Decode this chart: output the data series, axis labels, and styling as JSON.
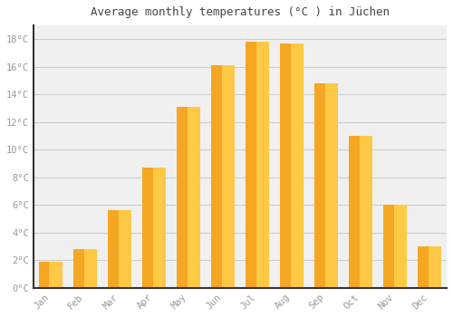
{
  "title": "Average monthly temperatures (°C ) in Jüchen",
  "months": [
    "Jan",
    "Feb",
    "Mar",
    "Apr",
    "May",
    "Jun",
    "Jul",
    "Aug",
    "Sep",
    "Oct",
    "Nov",
    "Dec"
  ],
  "values": [
    1.9,
    2.8,
    5.6,
    8.7,
    13.1,
    16.1,
    17.8,
    17.7,
    14.8,
    11.0,
    6.0,
    3.0
  ],
  "bar_color_left": "#F5A623",
  "bar_color_right": "#FFC845",
  "background_color": "#FFFFFF",
  "plot_bg_color": "#F0F0F0",
  "grid_color": "#CCCCCC",
  "tick_label_color": "#999999",
  "title_color": "#444444",
  "spine_color": "#333333",
  "ylim": [
    0,
    19
  ],
  "yticks": [
    0,
    2,
    4,
    6,
    8,
    10,
    12,
    14,
    16,
    18
  ],
  "ytick_labels": [
    "0°C",
    "2°C",
    "4°C",
    "6°C",
    "8°C",
    "10°C",
    "12°C",
    "14°C",
    "16°C",
    "18°C"
  ]
}
